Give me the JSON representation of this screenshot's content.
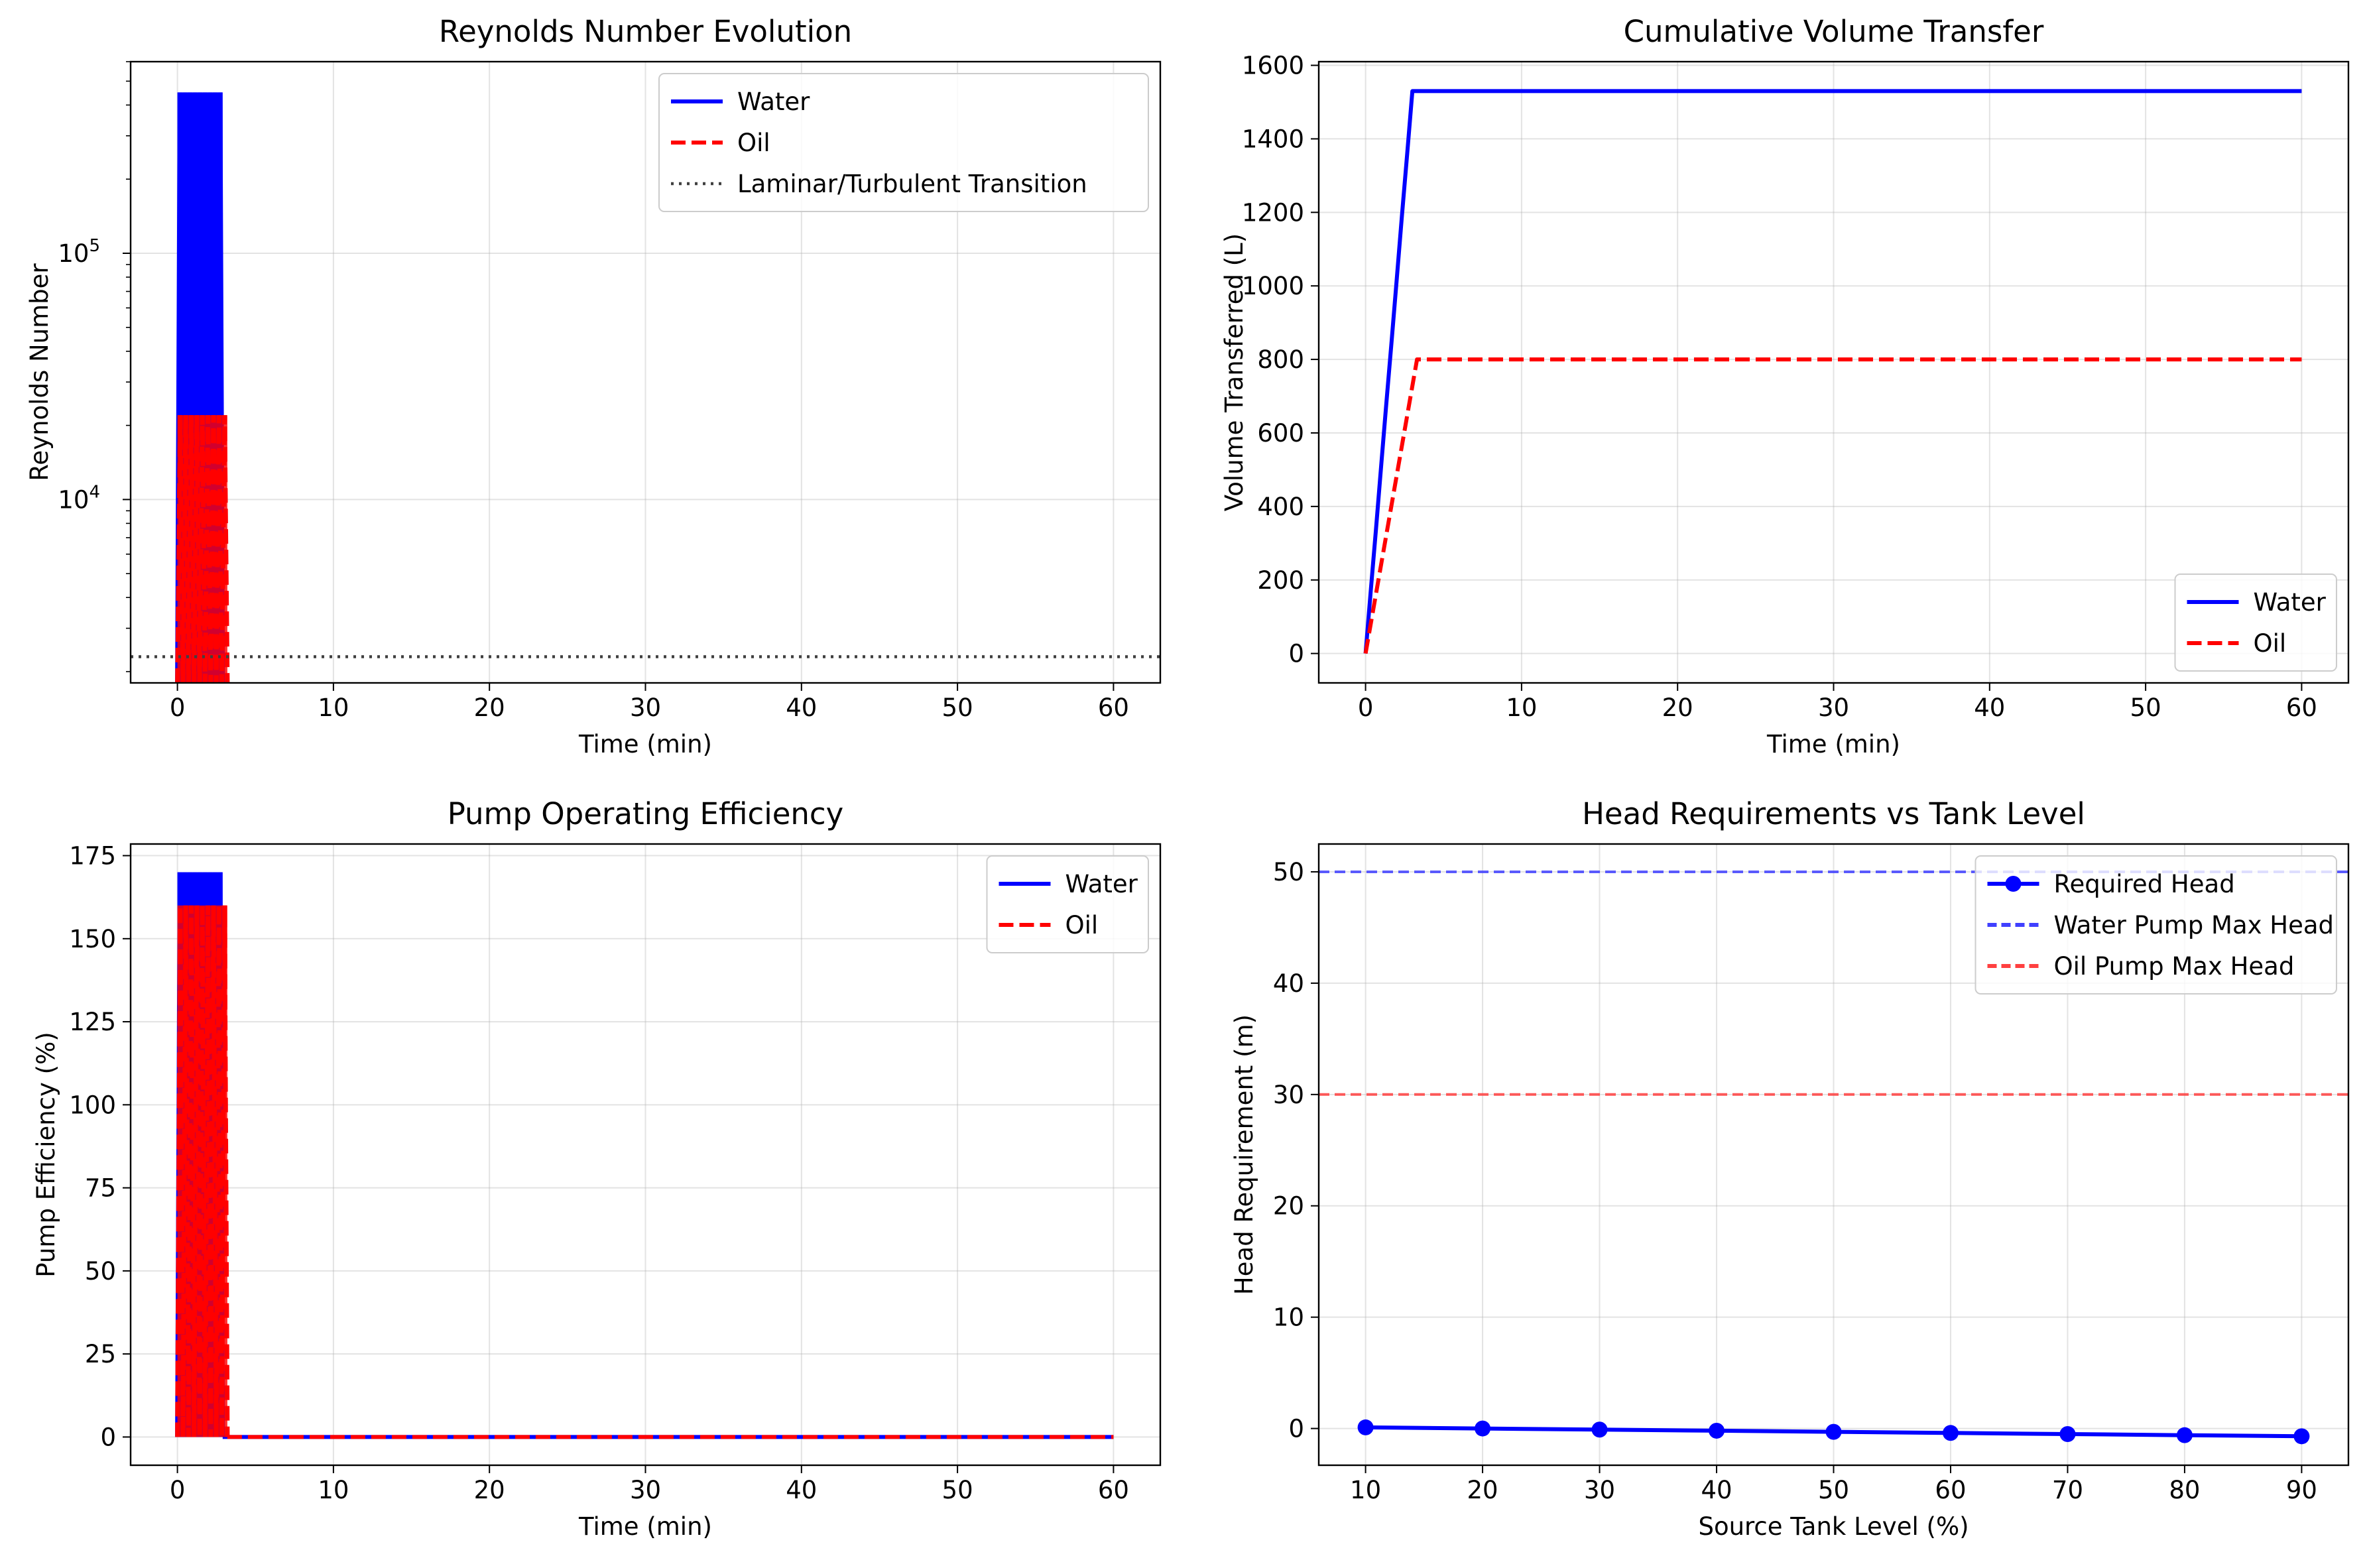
{
  "chart_data": [
    {
      "id": "reynolds",
      "type": "line",
      "title": "Reynolds Number Evolution",
      "xlabel": "Time (min)",
      "ylabel": "Reynolds Number",
      "xlim": [
        -3,
        63
      ],
      "ylim": [
        1800,
        600000
      ],
      "yscale": "log",
      "x_ticks": [
        "0",
        "10",
        "20",
        "30",
        "40",
        "50",
        "60"
      ],
      "x_tick_values": [
        0,
        10,
        20,
        30,
        40,
        50,
        60
      ],
      "y_ticks": [
        {
          "value": 10000,
          "base": "10",
          "exp": "4"
        },
        {
          "value": 100000,
          "base": "10",
          "exp": "5"
        }
      ],
      "grid": true,
      "legend_position": "top-right",
      "series": [
        {
          "name": "Water",
          "color": "#0000ff",
          "style": "solid",
          "x_range": [
            0,
            2.9
          ],
          "y_range": [
            1800,
            450000
          ]
        },
        {
          "name": "Oil",
          "color": "#ff0000",
          "style": "dashed",
          "x_range": [
            0,
            3.2
          ],
          "y_range": [
            1800,
            22000
          ]
        },
        {
          "name": "Laminar/Turbulent Transition",
          "color": "#404040",
          "style": "dotted",
          "x": [
            -3,
            63
          ],
          "y": [
            2300,
            2300
          ]
        }
      ]
    },
    {
      "id": "volume",
      "type": "line",
      "title": "Cumulative Volume Transfer",
      "xlabel": "Time (min)",
      "ylabel": "Volume Transferred (L)",
      "xlim": [
        -3,
        63
      ],
      "ylim": [
        -80,
        1610
      ],
      "x_ticks": [
        "0",
        "10",
        "20",
        "30",
        "40",
        "50",
        "60"
      ],
      "x_tick_values": [
        0,
        10,
        20,
        30,
        40,
        50,
        60
      ],
      "y_ticks": [
        "0",
        "200",
        "400",
        "600",
        "800",
        "1000",
        "1200",
        "1400",
        "1600"
      ],
      "y_tick_values": [
        0,
        200,
        400,
        600,
        800,
        1000,
        1200,
        1400,
        1600
      ],
      "grid": true,
      "legend_position": "lower-right",
      "series": [
        {
          "name": "Water",
          "color": "#0000ff",
          "style": "solid",
          "x": [
            0,
            0.33,
            0.33,
            0.67,
            0.67,
            1.0,
            1.0,
            1.33,
            1.33,
            1.67,
            1.67,
            2.0,
            2.0,
            2.33,
            2.33,
            2.67,
            2.67,
            3.0,
            60
          ],
          "y": [
            0,
            170,
            170,
            340,
            340,
            510,
            510,
            680,
            680,
            850,
            850,
            1020,
            1020,
            1190,
            1190,
            1360,
            1360,
            1530,
            1530
          ]
        },
        {
          "name": "Oil",
          "color": "#ff0000",
          "style": "dashed",
          "x": [
            0,
            3.3,
            60
          ],
          "y": [
            0,
            800,
            800
          ]
        }
      ]
    },
    {
      "id": "efficiency",
      "type": "line",
      "title": "Pump Operating Efficiency",
      "xlabel": "Time (min)",
      "ylabel": "Pump Efficiency (%)",
      "xlim": [
        -3,
        63
      ],
      "ylim": [
        -8.5,
        178.5
      ],
      "x_ticks": [
        "0",
        "10",
        "20",
        "30",
        "40",
        "50",
        "60"
      ],
      "x_tick_values": [
        0,
        10,
        20,
        30,
        40,
        50,
        60
      ],
      "y_ticks": [
        "0",
        "25",
        "50",
        "75",
        "100",
        "125",
        "150",
        "175"
      ],
      "y_tick_values": [
        0,
        25,
        50,
        75,
        100,
        125,
        150,
        175
      ],
      "grid": true,
      "legend_position": "top-right",
      "series": [
        {
          "name": "Water",
          "color": "#0000ff",
          "style": "solid",
          "x_range": [
            0,
            2.9
          ],
          "y_range": [
            0,
            170
          ],
          "tail": [
            [
              2.9,
              0
            ],
            [
              60,
              0
            ]
          ]
        },
        {
          "name": "Oil",
          "color": "#ff0000",
          "style": "dashed",
          "x_range": [
            0,
            3.2
          ],
          "y_range": [
            0,
            160
          ],
          "tail": [
            [
              3.2,
              0
            ],
            [
              60,
              0
            ]
          ]
        }
      ]
    },
    {
      "id": "head",
      "type": "line",
      "title": "Head Requirements vs Tank Level",
      "xlabel": "Source Tank Level (%)",
      "ylabel": "Head Requirement (m)",
      "xlim": [
        6,
        94
      ],
      "ylim": [
        -3.3,
        52.5
      ],
      "x_ticks": [
        "10",
        "20",
        "30",
        "40",
        "50",
        "60",
        "70",
        "80",
        "90"
      ],
      "x_tick_values": [
        10,
        20,
        30,
        40,
        50,
        60,
        70,
        80,
        90
      ],
      "y_ticks": [
        "0",
        "10",
        "20",
        "30",
        "40",
        "50"
      ],
      "y_tick_values": [
        0,
        10,
        20,
        30,
        40,
        50
      ],
      "grid": true,
      "legend_position": "top-right",
      "series": [
        {
          "name": "Required Head",
          "color": "#0000ff",
          "style": "solid",
          "marker": "circle",
          "x": [
            10,
            20,
            30,
            40,
            50,
            60,
            70,
            80,
            90
          ],
          "y": [
            0.1,
            0.0,
            -0.1,
            -0.2,
            -0.3,
            -0.4,
            -0.5,
            -0.6,
            -0.7
          ]
        },
        {
          "name": "Water Pump Max Head",
          "color": "#4040ff",
          "style": "dashed",
          "x": [
            6,
            94
          ],
          "y": [
            50,
            50
          ]
        },
        {
          "name": "Oil Pump Max Head",
          "color": "#ff4040",
          "style": "dashed",
          "x": [
            6,
            94
          ],
          "y": [
            30,
            30
          ]
        }
      ]
    }
  ]
}
